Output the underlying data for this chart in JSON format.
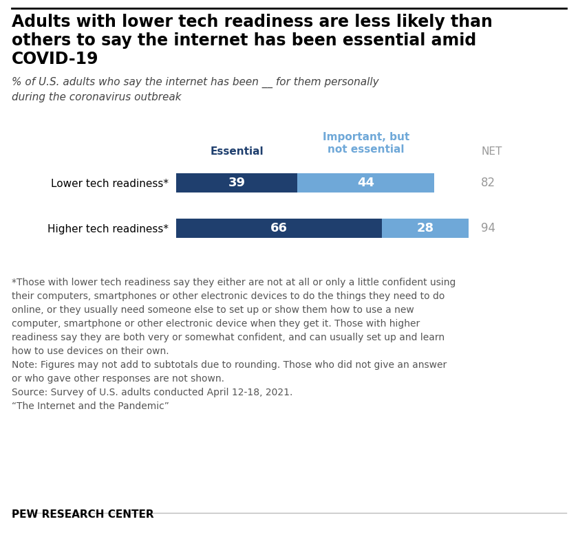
{
  "title_line1": "Adults with lower tech readiness are less likely than",
  "title_line2": "others to say the internet has been essential amid",
  "title_line3": "COVID-19",
  "subtitle": "% of U.S. adults who say the internet has been __ for them personally\nduring the coronavirus outbreak",
  "categories": [
    "Lower tech readiness*",
    "Higher tech readiness*"
  ],
  "essential": [
    39,
    66
  ],
  "important_not_essential": [
    44,
    28
  ],
  "net": [
    82,
    94
  ],
  "color_essential": "#1f3f6e",
  "color_important": "#6fa8d8",
  "legend_essential": "Essential",
  "legend_important": "Important, but\nnot essential",
  "net_label": "NET",
  "footnote_line1": "*Those with lower tech readiness say they either are not at all or only a little confident using",
  "footnote_line2": "their computers, smartphones or other electronic devices to do the things they need to do",
  "footnote_line3": "online, or they usually need someone else to set up or show them how to use a new",
  "footnote_line4": "computer, smartphone or other electronic device when they get it. Those with higher",
  "footnote_line5": "readiness say they are both very or somewhat confident, and can usually set up and learn",
  "footnote_line6": "how to use devices on their own.",
  "footnote_line7": "Note: Figures may not add to subtotals due to rounding. Those who did not give an answer",
  "footnote_line8": "or who gave other responses are not shown.",
  "footnote_line9": "Source: Survey of U.S. adults conducted April 12-18, 2021.",
  "footnote_line10": "“The Internet and the Pandemic”",
  "source_label": "PEW RESEARCH CENTER",
  "background_color": "#ffffff",
  "title_fontsize": 17,
  "subtitle_fontsize": 11,
  "bar_label_fontsize": 13,
  "header_fontsize": 11,
  "yticklabel_fontsize": 11,
  "net_fontsize": 12,
  "footnote_fontsize": 10,
  "source_fontsize": 11
}
